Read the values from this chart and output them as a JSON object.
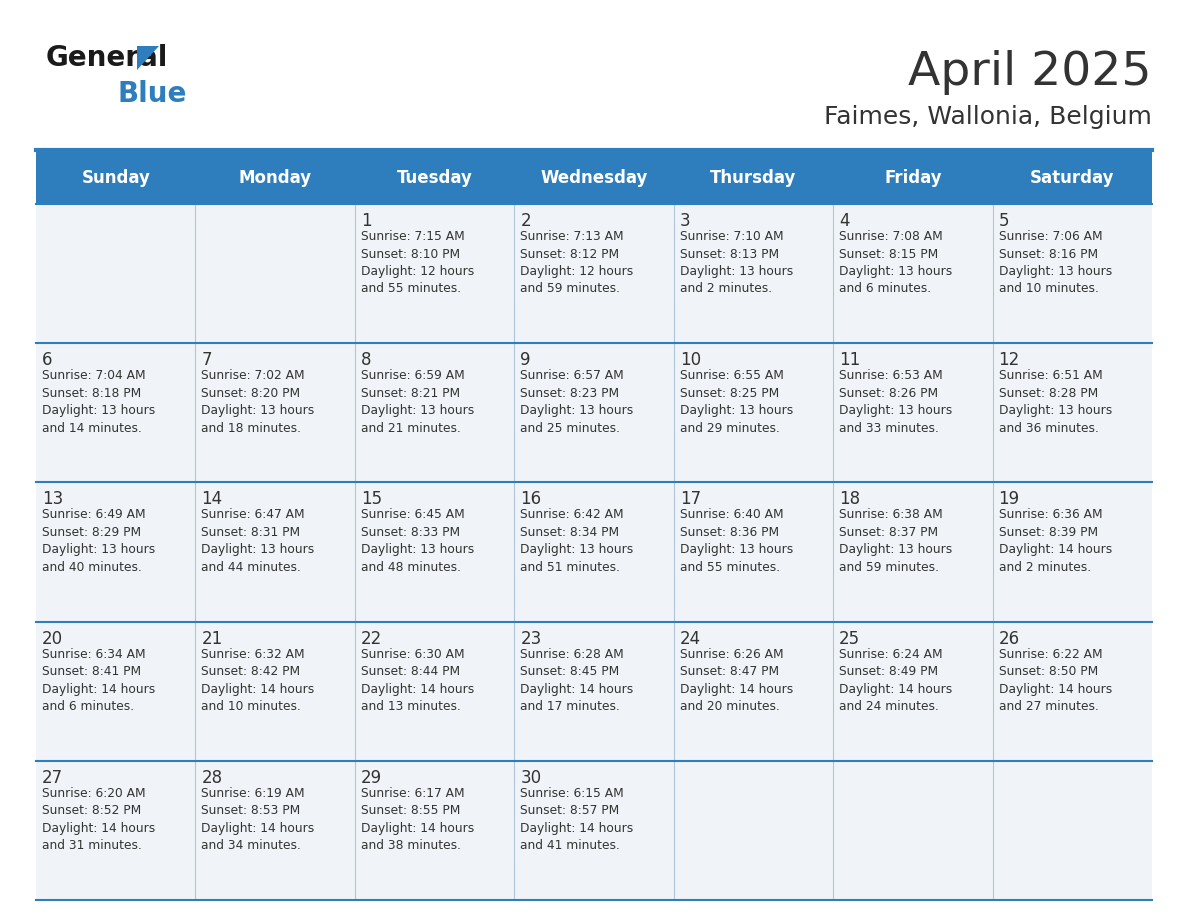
{
  "title": "April 2025",
  "subtitle": "Faimes, Wallonia, Belgium",
  "header_color": "#2E7EBD",
  "header_text_color": "#FFFFFF",
  "cell_bg_color": "#F0F4F8",
  "border_color": "#2E7EBD",
  "grid_line_color": "#B0C4D8",
  "text_color": "#333333",
  "day_headers": [
    "Sunday",
    "Monday",
    "Tuesday",
    "Wednesday",
    "Thursday",
    "Friday",
    "Saturday"
  ],
  "weeks": [
    [
      {
        "day": "",
        "info": ""
      },
      {
        "day": "",
        "info": ""
      },
      {
        "day": "1",
        "info": "Sunrise: 7:15 AM\nSunset: 8:10 PM\nDaylight: 12 hours\nand 55 minutes."
      },
      {
        "day": "2",
        "info": "Sunrise: 7:13 AM\nSunset: 8:12 PM\nDaylight: 12 hours\nand 59 minutes."
      },
      {
        "day": "3",
        "info": "Sunrise: 7:10 AM\nSunset: 8:13 PM\nDaylight: 13 hours\nand 2 minutes."
      },
      {
        "day": "4",
        "info": "Sunrise: 7:08 AM\nSunset: 8:15 PM\nDaylight: 13 hours\nand 6 minutes."
      },
      {
        "day": "5",
        "info": "Sunrise: 7:06 AM\nSunset: 8:16 PM\nDaylight: 13 hours\nand 10 minutes."
      }
    ],
    [
      {
        "day": "6",
        "info": "Sunrise: 7:04 AM\nSunset: 8:18 PM\nDaylight: 13 hours\nand 14 minutes."
      },
      {
        "day": "7",
        "info": "Sunrise: 7:02 AM\nSunset: 8:20 PM\nDaylight: 13 hours\nand 18 minutes."
      },
      {
        "day": "8",
        "info": "Sunrise: 6:59 AM\nSunset: 8:21 PM\nDaylight: 13 hours\nand 21 minutes."
      },
      {
        "day": "9",
        "info": "Sunrise: 6:57 AM\nSunset: 8:23 PM\nDaylight: 13 hours\nand 25 minutes."
      },
      {
        "day": "10",
        "info": "Sunrise: 6:55 AM\nSunset: 8:25 PM\nDaylight: 13 hours\nand 29 minutes."
      },
      {
        "day": "11",
        "info": "Sunrise: 6:53 AM\nSunset: 8:26 PM\nDaylight: 13 hours\nand 33 minutes."
      },
      {
        "day": "12",
        "info": "Sunrise: 6:51 AM\nSunset: 8:28 PM\nDaylight: 13 hours\nand 36 minutes."
      }
    ],
    [
      {
        "day": "13",
        "info": "Sunrise: 6:49 AM\nSunset: 8:29 PM\nDaylight: 13 hours\nand 40 minutes."
      },
      {
        "day": "14",
        "info": "Sunrise: 6:47 AM\nSunset: 8:31 PM\nDaylight: 13 hours\nand 44 minutes."
      },
      {
        "day": "15",
        "info": "Sunrise: 6:45 AM\nSunset: 8:33 PM\nDaylight: 13 hours\nand 48 minutes."
      },
      {
        "day": "16",
        "info": "Sunrise: 6:42 AM\nSunset: 8:34 PM\nDaylight: 13 hours\nand 51 minutes."
      },
      {
        "day": "17",
        "info": "Sunrise: 6:40 AM\nSunset: 8:36 PM\nDaylight: 13 hours\nand 55 minutes."
      },
      {
        "day": "18",
        "info": "Sunrise: 6:38 AM\nSunset: 8:37 PM\nDaylight: 13 hours\nand 59 minutes."
      },
      {
        "day": "19",
        "info": "Sunrise: 6:36 AM\nSunset: 8:39 PM\nDaylight: 14 hours\nand 2 minutes."
      }
    ],
    [
      {
        "day": "20",
        "info": "Sunrise: 6:34 AM\nSunset: 8:41 PM\nDaylight: 14 hours\nand 6 minutes."
      },
      {
        "day": "21",
        "info": "Sunrise: 6:32 AM\nSunset: 8:42 PM\nDaylight: 14 hours\nand 10 minutes."
      },
      {
        "day": "22",
        "info": "Sunrise: 6:30 AM\nSunset: 8:44 PM\nDaylight: 14 hours\nand 13 minutes."
      },
      {
        "day": "23",
        "info": "Sunrise: 6:28 AM\nSunset: 8:45 PM\nDaylight: 14 hours\nand 17 minutes."
      },
      {
        "day": "24",
        "info": "Sunrise: 6:26 AM\nSunset: 8:47 PM\nDaylight: 14 hours\nand 20 minutes."
      },
      {
        "day": "25",
        "info": "Sunrise: 6:24 AM\nSunset: 8:49 PM\nDaylight: 14 hours\nand 24 minutes."
      },
      {
        "day": "26",
        "info": "Sunrise: 6:22 AM\nSunset: 8:50 PM\nDaylight: 14 hours\nand 27 minutes."
      }
    ],
    [
      {
        "day": "27",
        "info": "Sunrise: 6:20 AM\nSunset: 8:52 PM\nDaylight: 14 hours\nand 31 minutes."
      },
      {
        "day": "28",
        "info": "Sunrise: 6:19 AM\nSunset: 8:53 PM\nDaylight: 14 hours\nand 34 minutes."
      },
      {
        "day": "29",
        "info": "Sunrise: 6:17 AM\nSunset: 8:55 PM\nDaylight: 14 hours\nand 38 minutes."
      },
      {
        "day": "30",
        "info": "Sunrise: 6:15 AM\nSunset: 8:57 PM\nDaylight: 14 hours\nand 41 minutes."
      },
      {
        "day": "",
        "info": ""
      },
      {
        "day": "",
        "info": ""
      },
      {
        "day": "",
        "info": ""
      }
    ]
  ],
  "logo_color_general": "#1a1a1a",
  "logo_color_blue": "#2E7EBD",
  "title_fontsize": 34,
  "subtitle_fontsize": 18,
  "header_fontsize": 12,
  "day_num_fontsize": 12,
  "info_fontsize": 8.8
}
